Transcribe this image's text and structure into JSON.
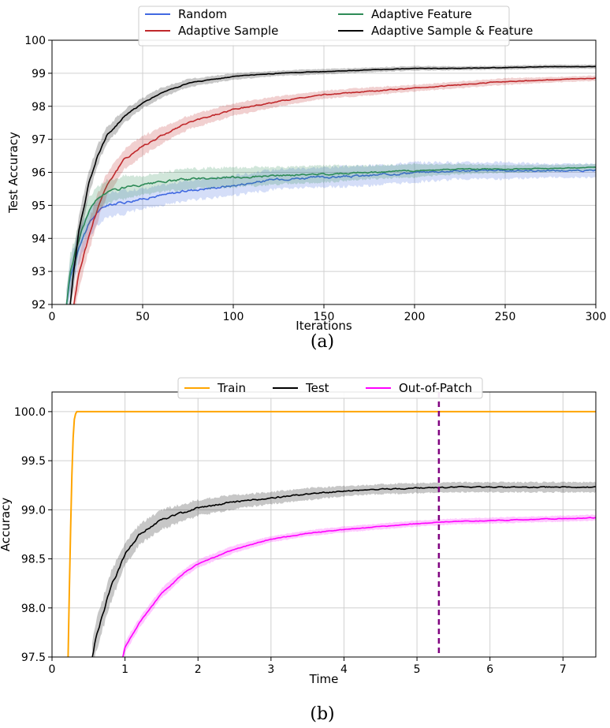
{
  "chart_data": [
    {
      "type": "line",
      "caption": "(a)",
      "xlabel": "Iterations",
      "ylabel": "Test Accuracy",
      "xlim": [
        0,
        300
      ],
      "ylim": [
        92,
        100
      ],
      "xticks": [
        "0",
        "50",
        "100",
        "150",
        "200",
        "250",
        "300"
      ],
      "yticks": [
        "92",
        "93",
        "94",
        "95",
        "96",
        "97",
        "98",
        "99",
        "100"
      ],
      "grid": true,
      "legend_position": "top-center",
      "series": [
        {
          "name": "Random",
          "color": "#4169e1",
          "x": [
            8,
            10,
            15,
            20,
            25,
            30,
            40,
            50,
            60,
            75,
            100,
            125,
            150,
            175,
            200,
            225,
            250,
            275,
            300
          ],
          "y": [
            92.0,
            92.8,
            93.8,
            94.4,
            94.8,
            95.0,
            95.1,
            95.2,
            95.3,
            95.45,
            95.6,
            95.8,
            95.85,
            95.9,
            96.0,
            96.05,
            96.05,
            96.05,
            96.05
          ],
          "band": [
            0.4,
            0.55,
            0.5,
            0.45,
            0.4,
            0.35,
            0.35,
            0.3,
            0.3,
            0.3,
            0.3,
            0.3,
            0.3,
            0.3,
            0.3,
            0.25,
            0.25,
            0.2,
            0.2
          ]
        },
        {
          "name": "Adaptive Sample",
          "color": "#c0282b",
          "x": [
            12,
            15,
            20,
            25,
            30,
            40,
            50,
            60,
            75,
            100,
            125,
            150,
            175,
            200,
            225,
            250,
            275,
            300
          ],
          "y": [
            92.0,
            93.0,
            94.0,
            94.9,
            95.6,
            96.4,
            96.8,
            97.1,
            97.5,
            97.9,
            98.15,
            98.35,
            98.45,
            98.55,
            98.65,
            98.75,
            98.8,
            98.85
          ],
          "band": [
            0.4,
            0.5,
            0.45,
            0.4,
            0.35,
            0.3,
            0.3,
            0.25,
            0.2,
            0.2,
            0.15,
            0.12,
            0.12,
            0.1,
            0.1,
            0.1,
            0.08,
            0.08
          ]
        },
        {
          "name": "Adaptive Feature",
          "color": "#2e8b57",
          "x": [
            8,
            10,
            15,
            20,
            25,
            30,
            40,
            50,
            60,
            75,
            100,
            125,
            150,
            175,
            200,
            225,
            250,
            275,
            300
          ],
          "y": [
            92.0,
            93.0,
            94.0,
            94.8,
            95.2,
            95.4,
            95.55,
            95.6,
            95.7,
            95.8,
            95.85,
            95.9,
            95.95,
            96.0,
            96.05,
            96.1,
            96.1,
            96.12,
            96.15
          ],
          "band": [
            0.4,
            0.5,
            0.45,
            0.4,
            0.35,
            0.35,
            0.35,
            0.3,
            0.3,
            0.3,
            0.3,
            0.25,
            0.25,
            0.2,
            0.2,
            0.15,
            0.12,
            0.1,
            0.1
          ]
        },
        {
          "name": "Adaptive Sample & Feature",
          "color": "#000000",
          "x": [
            10,
            12,
            15,
            20,
            25,
            30,
            40,
            50,
            60,
            75,
            100,
            125,
            150,
            175,
            200,
            225,
            250,
            275,
            300
          ],
          "y": [
            92.0,
            93.0,
            94.3,
            95.6,
            96.5,
            97.1,
            97.7,
            98.1,
            98.4,
            98.7,
            98.9,
            99.0,
            99.05,
            99.1,
            99.15,
            99.15,
            99.17,
            99.2,
            99.2
          ],
          "band": [
            0.4,
            0.5,
            0.45,
            0.35,
            0.3,
            0.25,
            0.2,
            0.15,
            0.15,
            0.12,
            0.1,
            0.08,
            0.08,
            0.07,
            0.07,
            0.06,
            0.06,
            0.06,
            0.06
          ]
        }
      ]
    },
    {
      "type": "line",
      "caption": "(b)",
      "xlabel": "Time",
      "ylabel": "Accuracy",
      "xlim": [
        0,
        7.45
      ],
      "ylim": [
        97.5,
        100.2
      ],
      "xticks": [
        "0",
        "1",
        "2",
        "3",
        "4",
        "5",
        "6",
        "7"
      ],
      "yticks": [
        "97.5",
        "98.0",
        "98.5",
        "99.0",
        "99.5",
        "100.0"
      ],
      "grid": true,
      "legend_position": "top-center",
      "vline": {
        "x": 5.3,
        "color": "#800080",
        "style": "dashed"
      },
      "series": [
        {
          "name": "Train",
          "color": "#ffa500",
          "x": [
            0.22,
            0.24,
            0.26,
            0.28,
            0.3,
            0.33,
            0.36,
            1,
            2,
            3,
            4,
            5,
            6,
            7,
            7.45
          ],
          "y": [
            97.5,
            98.3,
            99.0,
            99.6,
            99.9,
            100.0,
            100.0,
            100.0,
            100.0,
            100.0,
            100.0,
            100.0,
            100.0,
            100.0,
            100.0
          ],
          "band": [
            0,
            0,
            0,
            0,
            0,
            0,
            0,
            0,
            0,
            0,
            0,
            0,
            0,
            0,
            0
          ]
        },
        {
          "name": "Test",
          "color": "#000000",
          "x": [
            0.55,
            0.6,
            0.7,
            0.8,
            1.0,
            1.2,
            1.5,
            2.0,
            2.5,
            3.0,
            3.5,
            4.0,
            4.5,
            5.0,
            5.5,
            6.0,
            6.5,
            7.0,
            7.45
          ],
          "y": [
            97.5,
            97.7,
            97.95,
            98.2,
            98.55,
            98.75,
            98.9,
            99.02,
            99.08,
            99.12,
            99.16,
            99.19,
            99.21,
            99.22,
            99.23,
            99.23,
            99.23,
            99.23,
            99.23
          ],
          "band": [
            0.15,
            0.15,
            0.15,
            0.15,
            0.12,
            0.1,
            0.1,
            0.08,
            0.07,
            0.06,
            0.06,
            0.05,
            0.05,
            0.05,
            0.05,
            0.05,
            0.05,
            0.05,
            0.05
          ]
        },
        {
          "name": "Out-of-Patch",
          "color": "#ff00ff",
          "x": [
            0.97,
            1.0,
            1.2,
            1.5,
            1.8,
            2.0,
            2.5,
            3.0,
            3.5,
            4.0,
            4.5,
            5.0,
            5.5,
            6.0,
            6.5,
            7.0,
            7.45
          ],
          "y": [
            97.5,
            97.6,
            97.85,
            98.15,
            98.35,
            98.45,
            98.6,
            98.7,
            98.76,
            98.8,
            98.83,
            98.86,
            98.88,
            98.89,
            98.9,
            98.91,
            98.92
          ],
          "band": [
            0.06,
            0.06,
            0.05,
            0.05,
            0.04,
            0.04,
            0.04,
            0.03,
            0.03,
            0.03,
            0.03,
            0.03,
            0.03,
            0.03,
            0.03,
            0.03,
            0.03
          ]
        }
      ]
    }
  ]
}
